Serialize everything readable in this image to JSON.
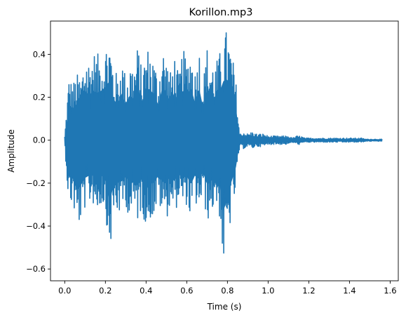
{
  "chart_data": {
    "type": "line",
    "title": "Korillon.mp3",
    "xlabel": "Time (s)",
    "ylabel": "Amplitude",
    "xlim": [
      -0.07,
      1.64
    ],
    "ylim": [
      -0.655,
      0.555
    ],
    "xticks": [
      0.0,
      0.2,
      0.4,
      0.6,
      0.8,
      1.0,
      1.2,
      1.4,
      1.6
    ],
    "xtick_labels": [
      "0.0",
      "0.2",
      "0.4",
      "0.6",
      "0.8",
      "1.0",
      "1.2",
      "1.4",
      "1.6"
    ],
    "yticks": [
      -0.6,
      -0.4,
      -0.2,
      0.0,
      0.2,
      0.4
    ],
    "ytick_labels": [
      "−0.6",
      "−0.4",
      "−0.2",
      "0.0",
      "0.2",
      "0.4"
    ],
    "grid": false,
    "series": [
      {
        "color": "#1f77b4",
        "x": [
          0.0,
          0.02,
          0.04,
          0.06,
          0.08,
          0.1,
          0.12,
          0.14,
          0.16,
          0.18,
          0.2,
          0.22,
          0.24,
          0.26,
          0.28,
          0.3,
          0.32,
          0.34,
          0.36,
          0.38,
          0.4,
          0.42,
          0.44,
          0.46,
          0.48,
          0.5,
          0.52,
          0.54,
          0.56,
          0.58,
          0.6,
          0.62,
          0.64,
          0.66,
          0.68,
          0.7,
          0.72,
          0.74,
          0.76,
          0.78,
          0.8,
          0.82,
          0.84,
          0.86,
          0.88,
          0.9,
          0.92,
          0.94,
          0.96,
          0.98,
          1.0,
          1.02,
          1.04,
          1.06,
          1.08,
          1.1,
          1.12,
          1.14,
          1.16,
          1.18,
          1.2,
          1.22,
          1.24,
          1.26,
          1.28,
          1.3,
          1.32,
          1.34,
          1.36,
          1.38,
          1.4,
          1.42,
          1.44,
          1.46,
          1.48,
          1.5,
          1.52,
          1.54,
          1.56
        ],
        "upper": [
          0.02,
          0.3,
          0.27,
          0.31,
          0.3,
          0.42,
          0.38,
          0.42,
          0.4,
          0.42,
          0.45,
          0.5,
          0.35,
          0.3,
          0.4,
          0.3,
          0.38,
          0.35,
          0.45,
          0.32,
          0.44,
          0.43,
          0.38,
          0.3,
          0.45,
          0.39,
          0.32,
          0.41,
          0.3,
          0.43,
          0.38,
          0.45,
          0.32,
          0.45,
          0.28,
          0.44,
          0.38,
          0.36,
          0.4,
          0.5,
          0.52,
          0.42,
          0.3,
          0.03,
          0.04,
          0.03,
          0.04,
          0.03,
          0.03,
          0.03,
          0.02,
          0.02,
          0.02,
          0.02,
          0.02,
          0.02,
          0.01,
          0.02,
          0.02,
          0.01,
          0.01,
          0.01,
          0.01,
          0.01,
          0.01,
          0.01,
          0.01,
          0.01,
          0.01,
          0.01,
          0.01,
          0.01,
          0.01,
          0.01,
          0.005,
          0.005,
          0.005,
          0.005,
          0.005
        ],
        "lower": [
          -0.02,
          -0.32,
          -0.3,
          -0.43,
          -0.38,
          -0.32,
          -0.3,
          -0.3,
          -0.35,
          -0.3,
          -0.33,
          -0.54,
          -0.38,
          -0.35,
          -0.35,
          -0.3,
          -0.38,
          -0.35,
          -0.38,
          -0.32,
          -0.42,
          -0.37,
          -0.36,
          -0.3,
          -0.35,
          -0.37,
          -0.3,
          -0.35,
          -0.28,
          -0.33,
          -0.3,
          -0.38,
          -0.3,
          -0.33,
          -0.27,
          -0.38,
          -0.35,
          -0.3,
          -0.35,
          -0.6,
          -0.5,
          -0.35,
          -0.25,
          -0.03,
          -0.04,
          -0.03,
          -0.04,
          -0.03,
          -0.03,
          -0.03,
          -0.02,
          -0.02,
          -0.02,
          -0.02,
          -0.02,
          -0.02,
          -0.01,
          -0.02,
          -0.02,
          -0.01,
          -0.01,
          -0.01,
          -0.01,
          -0.01,
          -0.01,
          -0.01,
          -0.01,
          -0.01,
          -0.01,
          -0.01,
          -0.01,
          -0.01,
          -0.01,
          -0.01,
          -0.005,
          -0.005,
          -0.005,
          -0.005,
          -0.005
        ]
      }
    ]
  }
}
